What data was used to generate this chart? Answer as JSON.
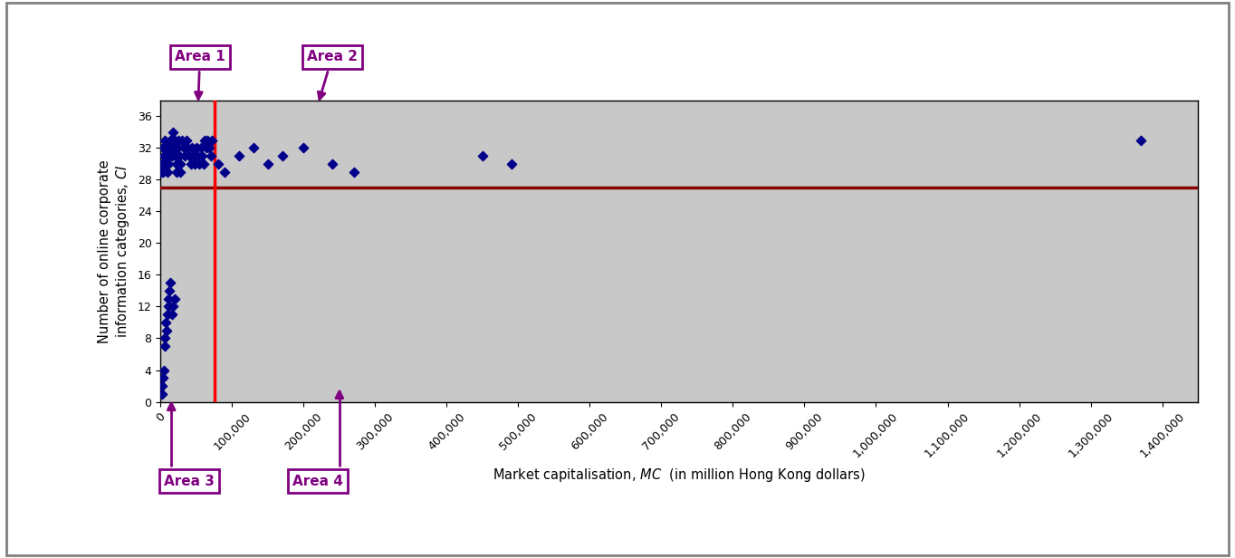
{
  "scatter_x": [
    1000,
    2000,
    3000,
    4000,
    5000,
    6000,
    7000,
    8000,
    9000,
    10000,
    11000,
    12000,
    13000,
    14000,
    15000,
    16000,
    17000,
    18000,
    19000,
    20000,
    21000,
    22000,
    23000,
    24000,
    25000,
    26000,
    27000,
    28000,
    30000,
    32000,
    34000,
    36000,
    38000,
    40000,
    42000,
    44000,
    46000,
    48000,
    50000,
    52000,
    54000,
    56000,
    58000,
    60000,
    62000,
    64000,
    66000,
    68000,
    70000,
    72000,
    1500,
    2500,
    3500,
    4500,
    5500,
    6500,
    7500,
    8500,
    9500,
    10500,
    11500,
    12500,
    13500,
    15500,
    17500,
    19500,
    80000,
    90000,
    110000,
    130000,
    150000,
    170000,
    200000,
    240000,
    270000,
    450000,
    490000,
    1370000
  ],
  "scatter_y": [
    29,
    30,
    32,
    29,
    31,
    33,
    30,
    32,
    31,
    29,
    30,
    31,
    32,
    33,
    32,
    31,
    34,
    33,
    32,
    33,
    31,
    30,
    29,
    32,
    33,
    31,
    30,
    29,
    33,
    32,
    31,
    33,
    32,
    31,
    30,
    32,
    31,
    30,
    32,
    31,
    30,
    32,
    31,
    30,
    33,
    32,
    33,
    32,
    31,
    33,
    1,
    2,
    3,
    4,
    7,
    8,
    10,
    9,
    11,
    12,
    13,
    14,
    15,
    11,
    12,
    13,
    30,
    29,
    31,
    32,
    30,
    31,
    32,
    30,
    29,
    31,
    30,
    33
  ],
  "hline_y": 27,
  "vline_x": 75000,
  "xlim": [
    0,
    1450000
  ],
  "ylim": [
    0,
    38
  ],
  "xticks": [
    0,
    100000,
    200000,
    300000,
    400000,
    500000,
    600000,
    700000,
    800000,
    900000,
    1000000,
    1100000,
    1200000,
    1300000,
    1400000
  ],
  "yticks": [
    0,
    4,
    8,
    12,
    16,
    20,
    24,
    28,
    32,
    36
  ],
  "xlabel": "Market capitalisation, MC  (in million Hong Kong dollars)",
  "ylabel_main": "Number of online corporate\ninformation categories, ",
  "ylabel_italic": "CI",
  "plot_bg_color": "#c8c8c8",
  "fig_bg_color": "#ffffff",
  "outer_border_color": "#808080",
  "scatter_color": "#00008B",
  "hline_color": "#8B0000",
  "vline_color": "#FF0000",
  "area1_label": "Area 1",
  "area2_label": "Area 2",
  "area3_label": "Area 3",
  "area4_label": "Area 4",
  "annotation_color": "#800080",
  "box_edge_color": "#800080",
  "arrow_color": "#800080"
}
